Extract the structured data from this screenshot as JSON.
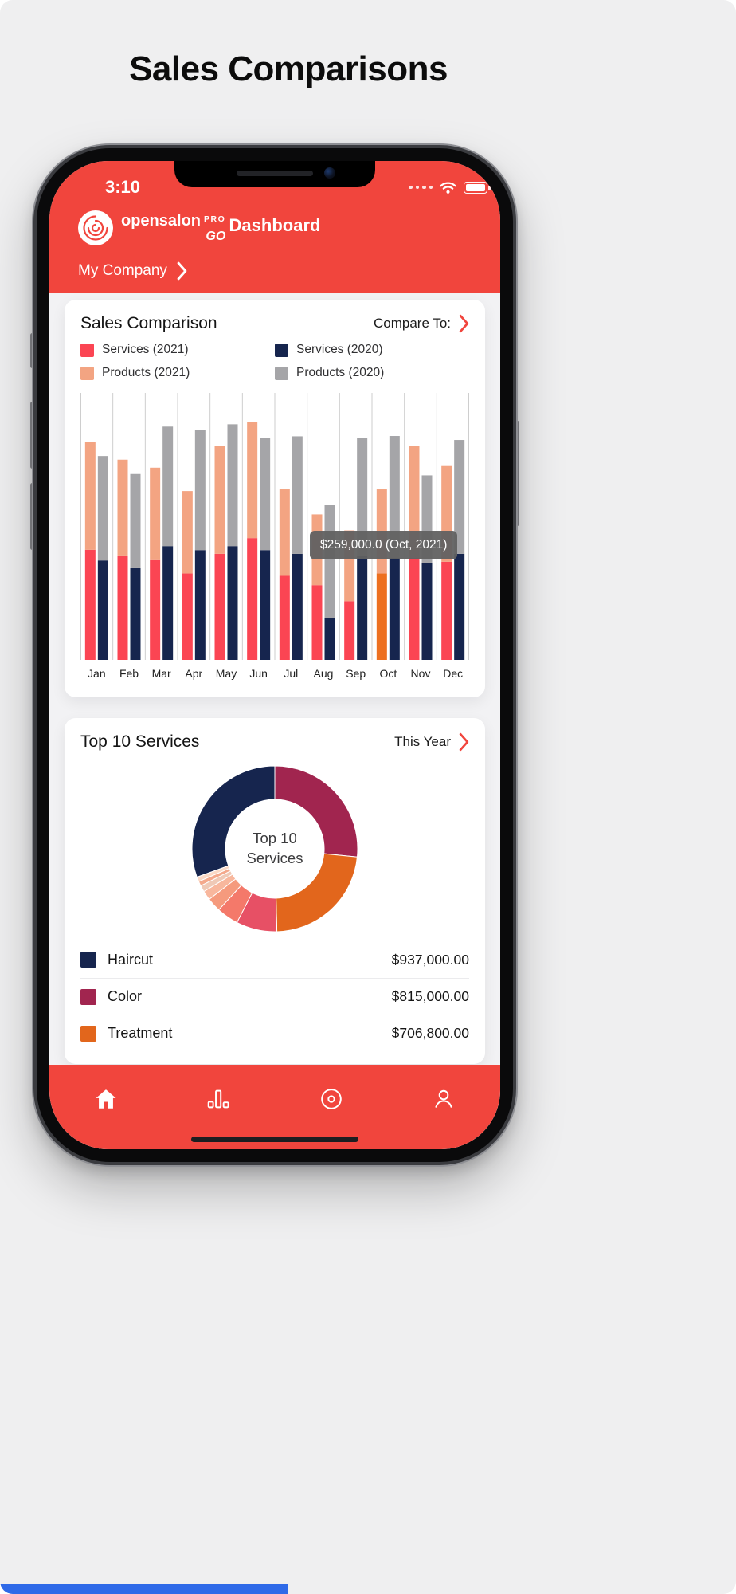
{
  "colors": {
    "brand_red": "#f1453d",
    "bottom_bar_blue": "#2f6ae8"
  },
  "page": {
    "title": "Sales Comparisons"
  },
  "phone": {
    "statusbar": {
      "time": "3:10",
      "signal_dots": 4
    },
    "header": {
      "brand_name": "opensalon",
      "brand_pro": "PRO",
      "brand_go": "GO",
      "screen_title": "Dashboard",
      "company": "My Company"
    }
  },
  "sales_card": {
    "title": "Sales Comparison",
    "action_label": "Compare To:",
    "legend": [
      {
        "label": "Services (2021)",
        "color": "#fb4553"
      },
      {
        "label": "Services (2020)",
        "color": "#16254e"
      },
      {
        "label": "Products (2021)",
        "color": "#f3a482"
      },
      {
        "label": "Products (2020)",
        "color": "#a5a5a8"
      }
    ],
    "tooltip": "$259,000.0 (Oct, 2021)"
  },
  "top_services_card": {
    "title": "Top 10 Services",
    "action_label": "This Year",
    "center_label": [
      "Top 10",
      "Services"
    ],
    "rows": [
      {
        "label": "Haircut",
        "value": "$937,000.00",
        "color": "#16254e"
      },
      {
        "label": "Color",
        "value": "$815,000.00",
        "color": "#a1254f"
      },
      {
        "label": "Treatment",
        "value": "$706,800.00",
        "color": "#e2661c"
      }
    ]
  },
  "nav": {
    "items": [
      "home",
      "stats",
      "record",
      "profile"
    ],
    "active": "home"
  },
  "chart_data": [
    {
      "type": "bar",
      "stacked": true,
      "title": "Sales Comparison",
      "categories": [
        "Jan",
        "Feb",
        "Mar",
        "Apr",
        "May",
        "Jun",
        "Jul",
        "Aug",
        "Sep",
        "Oct",
        "Nov",
        "Dec"
      ],
      "ylim": [
        0,
        800000
      ],
      "grid": "vertical",
      "pairs": [
        [
          "Services (2021)",
          "Products (2021)"
        ],
        [
          "Services (2020)",
          "Products (2020)"
        ]
      ],
      "series": [
        {
          "name": "Services (2021)",
          "color": "#fb4553",
          "values": [
            330000,
            313000,
            299000,
            259000,
            318000,
            365000,
            252000,
            224000,
            176000,
            259000,
            306000,
            294000
          ]
        },
        {
          "name": "Products (2021)",
          "color": "#f3a482",
          "values": [
            322000,
            287000,
            277000,
            247000,
            324000,
            348000,
            259000,
            212000,
            212000,
            252000,
            336000,
            287000
          ]
        },
        {
          "name": "Services (2020)",
          "color": "#16254e",
          "values": [
            298000,
            275000,
            341000,
            329000,
            341000,
            329000,
            318000,
            125000,
            313000,
            306000,
            289000,
            318000
          ]
        },
        {
          "name": "Products (2020)",
          "color": "#a5a5a8",
          "values": [
            313000,
            282000,
            358000,
            360000,
            365000,
            336000,
            352000,
            339000,
            353000,
            365000,
            264000,
            341000
          ]
        }
      ],
      "highlight": {
        "category": "Oct",
        "series": "Services (2021)",
        "color": "#ed7020"
      },
      "tooltip": "$259,000.0 (Oct, 2021)"
    },
    {
      "type": "pie",
      "donut": true,
      "title": "Top 10 Services",
      "center_label": "Top 10 Services",
      "start_angle_deg": -90,
      "slices": [
        {
          "label": "Color",
          "value": 815000,
          "color": "#a1254f"
        },
        {
          "label": "Treatment",
          "value": 706800,
          "color": "#e2661c"
        },
        {
          "label": "",
          "value": 244000,
          "color": "#e75065"
        },
        {
          "label": "",
          "value": 131000,
          "color": "#f4796a"
        },
        {
          "label": "",
          "value": 84000,
          "color": "#f59a7d"
        },
        {
          "label": "",
          "value": 56000,
          "color": "#f8b79d"
        },
        {
          "label": "",
          "value": 38000,
          "color": "#efc9b6"
        },
        {
          "label": "",
          "value": 28000,
          "color": "#f4a98c"
        },
        {
          "label": "",
          "value": 28000,
          "color": "#fbd9c6"
        },
        {
          "label": "Haircut",
          "value": 937000,
          "color": "#16254e"
        }
      ]
    }
  ]
}
